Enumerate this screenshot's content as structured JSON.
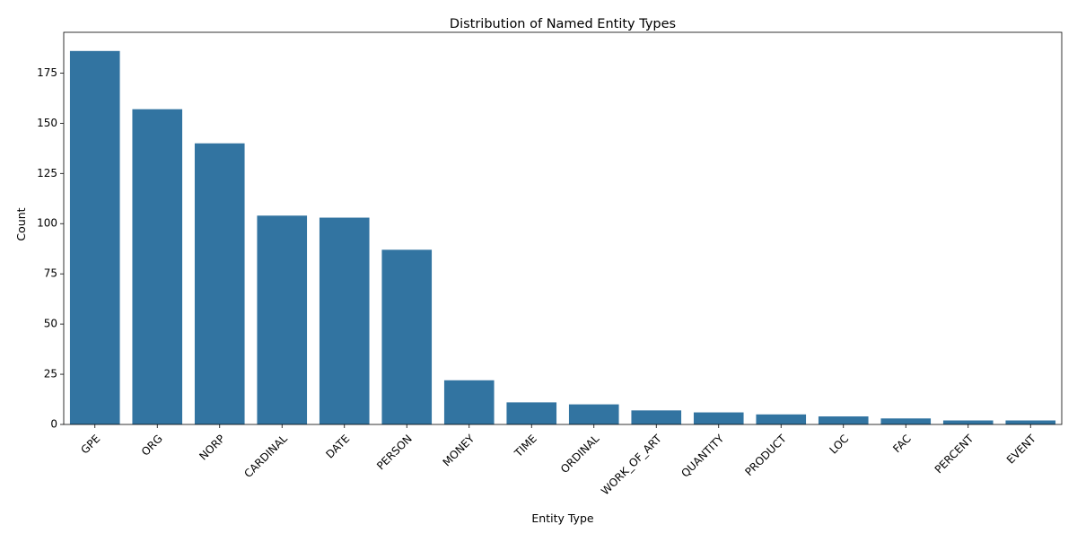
{
  "colors": {
    "bar": "#3274a1",
    "axis": "#000000",
    "background": "#ffffff"
  },
  "chart_data": {
    "type": "bar",
    "title": "Distribution of Named Entity Types",
    "xlabel": "Entity Type",
    "ylabel": "Count",
    "categories": [
      "GPE",
      "ORG",
      "NORP",
      "CARDINAL",
      "DATE",
      "PERSON",
      "MONEY",
      "TIME",
      "ORDINAL",
      "WORK_OF_ART",
      "QUANTITY",
      "PRODUCT",
      "LOC",
      "FAC",
      "PERCENT",
      "EVENT"
    ],
    "values": [
      186,
      157,
      140,
      104,
      103,
      87,
      22,
      11,
      10,
      7,
      6,
      5,
      4,
      3,
      2,
      2
    ],
    "ylim": [
      0,
      195.3
    ],
    "yticks": [
      0,
      25,
      50,
      75,
      100,
      125,
      150,
      175
    ],
    "xtick_rotation": 45,
    "grid": false,
    "legend": "none"
  }
}
